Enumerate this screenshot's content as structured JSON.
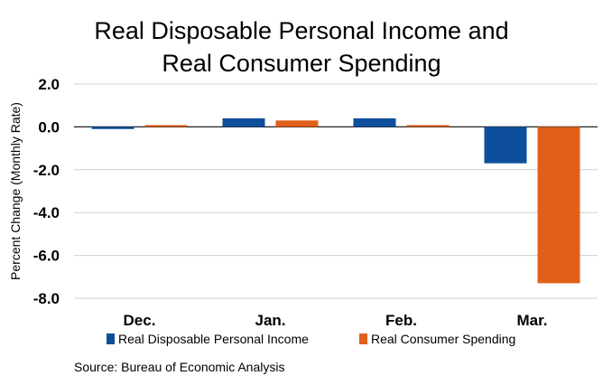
{
  "chart_data": {
    "type": "bar",
    "title_lines": [
      "Real Disposable Personal Income and",
      "Real Consumer Spending"
    ],
    "ylabel": "Percent Change (Monthly Rate)",
    "categories": [
      "Dec.",
      "Jan.",
      "Feb.",
      "Mar."
    ],
    "series": [
      {
        "name": "Real Disposable Personal Income",
        "color": "#0e4f9c",
        "values": [
          -0.1,
          0.4,
          0.4,
          -1.7
        ]
      },
      {
        "name": "Real Consumer Spending",
        "color": "#e0601b",
        "values": [
          0.05,
          0.3,
          0.05,
          -7.3
        ]
      }
    ],
    "ylim": [
      -8,
      2
    ],
    "yticks": [
      "2.0",
      "0.0",
      "-2.0",
      "-4.0",
      "-6.0",
      "-8.0"
    ],
    "grid": true,
    "legend_position": "bottom"
  },
  "source": "Source:  Bureau of Economic Analysis"
}
